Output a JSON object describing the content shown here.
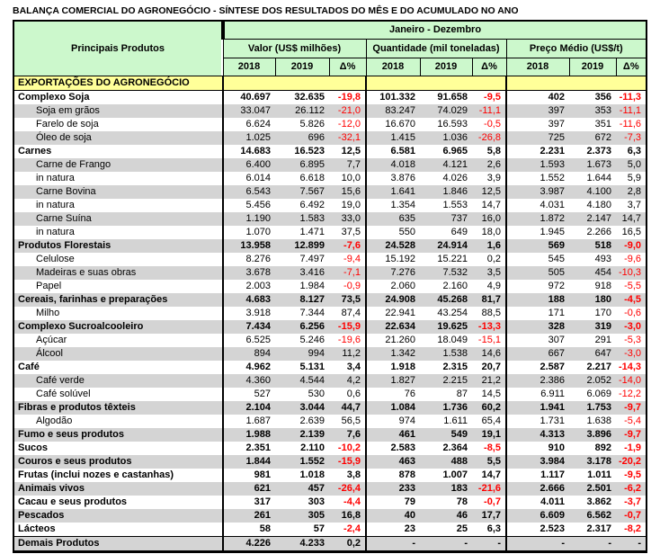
{
  "title": "BALANÇA COMERCIAL DO AGRONEGÓCIO - SÍNTESE DOS RESULTADOS DO MÊS E DO ACUMULADO NO ANO",
  "colors": {
    "header_green": "#CCF8CC",
    "section_yellow": "#FFFF99",
    "stripe_gray": "#D4D4D4",
    "negative_red": "#FF0000"
  },
  "table": {
    "products_header": "Principais Produtos",
    "period_header": "Janeiro - Dezembro",
    "groups": [
      {
        "label": "Valor (US$ milhões)"
      },
      {
        "label": "Quantidade (mil toneladas)"
      },
      {
        "label": "Preço Médio (US$/t)"
      }
    ],
    "year_cols": [
      "2018",
      "2019",
      "Δ%"
    ],
    "section_header": "EXPORTAÇÕES DO AGRONEGÓCIO",
    "rows": [
      {
        "label": "Complexo Soja",
        "level": 0,
        "bold": true,
        "values": [
          "40.697",
          "32.635",
          "-19,8",
          "101.332",
          "91.658",
          "-9,5",
          "402",
          "356",
          "-11,3"
        ]
      },
      {
        "label": "Soja em grãos",
        "level": 1,
        "bold": false,
        "values": [
          "33.047",
          "26.112",
          "-21,0",
          "83.247",
          "74.029",
          "-11,1",
          "397",
          "353",
          "-11,1"
        ]
      },
      {
        "label": "Farelo de soja",
        "level": 1,
        "bold": false,
        "values": [
          "6.624",
          "5.826",
          "-12,0",
          "16.670",
          "16.593",
          "-0,5",
          "397",
          "351",
          "-11,6"
        ]
      },
      {
        "label": "Óleo de soja",
        "level": 1,
        "bold": false,
        "values": [
          "1.025",
          "696",
          "-32,1",
          "1.415",
          "1.036",
          "-26,8",
          "725",
          "672",
          "-7,3"
        ]
      },
      {
        "label": "Carnes",
        "level": 0,
        "bold": true,
        "values": [
          "14.683",
          "16.523",
          "12,5",
          "6.581",
          "6.965",
          "5,8",
          "2.231",
          "2.373",
          "6,3"
        ]
      },
      {
        "label": "Carne de Frango",
        "level": 1,
        "bold": false,
        "values": [
          "6.400",
          "6.895",
          "7,7",
          "4.018",
          "4.121",
          "2,6",
          "1.593",
          "1.673",
          "5,0"
        ]
      },
      {
        "label": "in natura",
        "level": 1,
        "bold": false,
        "values": [
          "6.014",
          "6.618",
          "10,0",
          "3.876",
          "4.026",
          "3,9",
          "1.552",
          "1.644",
          "5,9"
        ]
      },
      {
        "label": "Carne Bovina",
        "level": 1,
        "bold": false,
        "values": [
          "6.543",
          "7.567",
          "15,6",
          "1.641",
          "1.846",
          "12,5",
          "3.987",
          "4.100",
          "2,8"
        ]
      },
      {
        "label": "in natura",
        "level": 1,
        "bold": false,
        "values": [
          "5.456",
          "6.492",
          "19,0",
          "1.354",
          "1.553",
          "14,7",
          "4.031",
          "4.180",
          "3,7"
        ]
      },
      {
        "label": "Carne Suína",
        "level": 1,
        "bold": false,
        "values": [
          "1.190",
          "1.583",
          "33,0",
          "635",
          "737",
          "16,0",
          "1.872",
          "2.147",
          "14,7"
        ]
      },
      {
        "label": "in natura",
        "level": 1,
        "bold": false,
        "values": [
          "1.070",
          "1.471",
          "37,5",
          "550",
          "649",
          "18,0",
          "1.945",
          "2.266",
          "16,5"
        ]
      },
      {
        "label": "Produtos Florestais",
        "level": 0,
        "bold": true,
        "values": [
          "13.958",
          "12.899",
          "-7,6",
          "24.528",
          "24.914",
          "1,6",
          "569",
          "518",
          "-9,0"
        ]
      },
      {
        "label": "Celulose",
        "level": 1,
        "bold": false,
        "values": [
          "8.276",
          "7.497",
          "-9,4",
          "15.192",
          "15.221",
          "0,2",
          "545",
          "493",
          "-9,6"
        ]
      },
      {
        "label": "Madeiras e suas obras",
        "level": 1,
        "bold": false,
        "values": [
          "3.678",
          "3.416",
          "-7,1",
          "7.276",
          "7.532",
          "3,5",
          "505",
          "454",
          "-10,3"
        ]
      },
      {
        "label": "Papel",
        "level": 1,
        "bold": false,
        "values": [
          "2.003",
          "1.984",
          "-0,9",
          "2.060",
          "2.160",
          "4,9",
          "972",
          "918",
          "-5,5"
        ]
      },
      {
        "label": "Cereais, farinhas e preparações",
        "level": 0,
        "bold": true,
        "values": [
          "4.683",
          "8.127",
          "73,5",
          "24.908",
          "45.268",
          "81,7",
          "188",
          "180",
          "-4,5"
        ]
      },
      {
        "label": "Milho",
        "level": 1,
        "bold": false,
        "values": [
          "3.918",
          "7.344",
          "87,4",
          "22.941",
          "43.254",
          "88,5",
          "171",
          "170",
          "-0,6"
        ]
      },
      {
        "label": "Complexo Sucroalcooleiro",
        "level": 0,
        "bold": true,
        "values": [
          "7.434",
          "6.256",
          "-15,9",
          "22.634",
          "19.625",
          "-13,3",
          "328",
          "319",
          "-3,0"
        ]
      },
      {
        "label": "Açúcar",
        "level": 1,
        "bold": false,
        "values": [
          "6.525",
          "5.246",
          "-19,6",
          "21.260",
          "18.049",
          "-15,1",
          "307",
          "291",
          "-5,3"
        ]
      },
      {
        "label": "Álcool",
        "level": 1,
        "bold": false,
        "values": [
          "894",
          "994",
          "11,2",
          "1.342",
          "1.538",
          "14,6",
          "667",
          "647",
          "-3,0"
        ]
      },
      {
        "label": "Café",
        "level": 0,
        "bold": true,
        "values": [
          "4.962",
          "5.131",
          "3,4",
          "1.918",
          "2.315",
          "20,7",
          "2.587",
          "2.217",
          "-14,3"
        ]
      },
      {
        "label": "Café verde",
        "level": 1,
        "bold": false,
        "values": [
          "4.360",
          "4.544",
          "4,2",
          "1.827",
          "2.215",
          "21,2",
          "2.386",
          "2.052",
          "-14,0"
        ]
      },
      {
        "label": "Café solúvel",
        "level": 1,
        "bold": false,
        "values": [
          "527",
          "530",
          "0,6",
          "76",
          "87",
          "14,5",
          "6.911",
          "6.069",
          "-12,2"
        ]
      },
      {
        "label": "Fibras e produtos têxteis",
        "level": 0,
        "bold": true,
        "values": [
          "2.104",
          "3.044",
          "44,7",
          "1.084",
          "1.736",
          "60,2",
          "1.941",
          "1.753",
          "-9,7"
        ]
      },
      {
        "label": "Algodão",
        "level": 1,
        "bold": false,
        "values": [
          "1.687",
          "2.639",
          "56,5",
          "974",
          "1.611",
          "65,4",
          "1.731",
          "1.638",
          "-5,4"
        ]
      },
      {
        "label": "Fumo e seus produtos",
        "level": 0,
        "bold": true,
        "values": [
          "1.988",
          "2.139",
          "7,6",
          "461",
          "549",
          "19,1",
          "4.313",
          "3.896",
          "-9,7"
        ]
      },
      {
        "label": "Sucos",
        "level": 0,
        "bold": true,
        "values": [
          "2.351",
          "2.110",
          "-10,2",
          "2.583",
          "2.364",
          "-8,5",
          "910",
          "892",
          "-1,9"
        ]
      },
      {
        "label": "Couros e seus produtos",
        "level": 0,
        "bold": true,
        "values": [
          "1.844",
          "1.552",
          "-15,9",
          "463",
          "488",
          "5,5",
          "3.984",
          "3.178",
          "-20,2"
        ]
      },
      {
        "label": "Frutas (inclui nozes e castanhas)",
        "level": 0,
        "bold": true,
        "values": [
          "981",
          "1.018",
          "3,8",
          "878",
          "1.007",
          "14,7",
          "1.117",
          "1.011",
          "-9,5"
        ]
      },
      {
        "label": "Animais vivos",
        "level": 0,
        "bold": true,
        "values": [
          "621",
          "457",
          "-26,4",
          "233",
          "183",
          "-21,6",
          "2.666",
          "2.501",
          "-6,2"
        ]
      },
      {
        "label": "Cacau e seus produtos",
        "level": 0,
        "bold": true,
        "values": [
          "317",
          "303",
          "-4,4",
          "79",
          "78",
          "-0,7",
          "4.011",
          "3.862",
          "-3,7"
        ]
      },
      {
        "label": "Pescados",
        "level": 0,
        "bold": true,
        "values": [
          "261",
          "305",
          "16,8",
          "40",
          "46",
          "17,7",
          "6.609",
          "6.562",
          "-0,7"
        ]
      },
      {
        "label": "Lácteos",
        "level": 0,
        "bold": true,
        "values": [
          "58",
          "57",
          "-2,4",
          "23",
          "25",
          "6,3",
          "2.523",
          "2.317",
          "-8,2"
        ]
      },
      {
        "label": "Demais Produtos",
        "level": 0,
        "bold": true,
        "values": [
          "4.226",
          "4.233",
          "0,2",
          "-",
          "-",
          "-",
          "-",
          "-",
          "-"
        ]
      }
    ]
  }
}
